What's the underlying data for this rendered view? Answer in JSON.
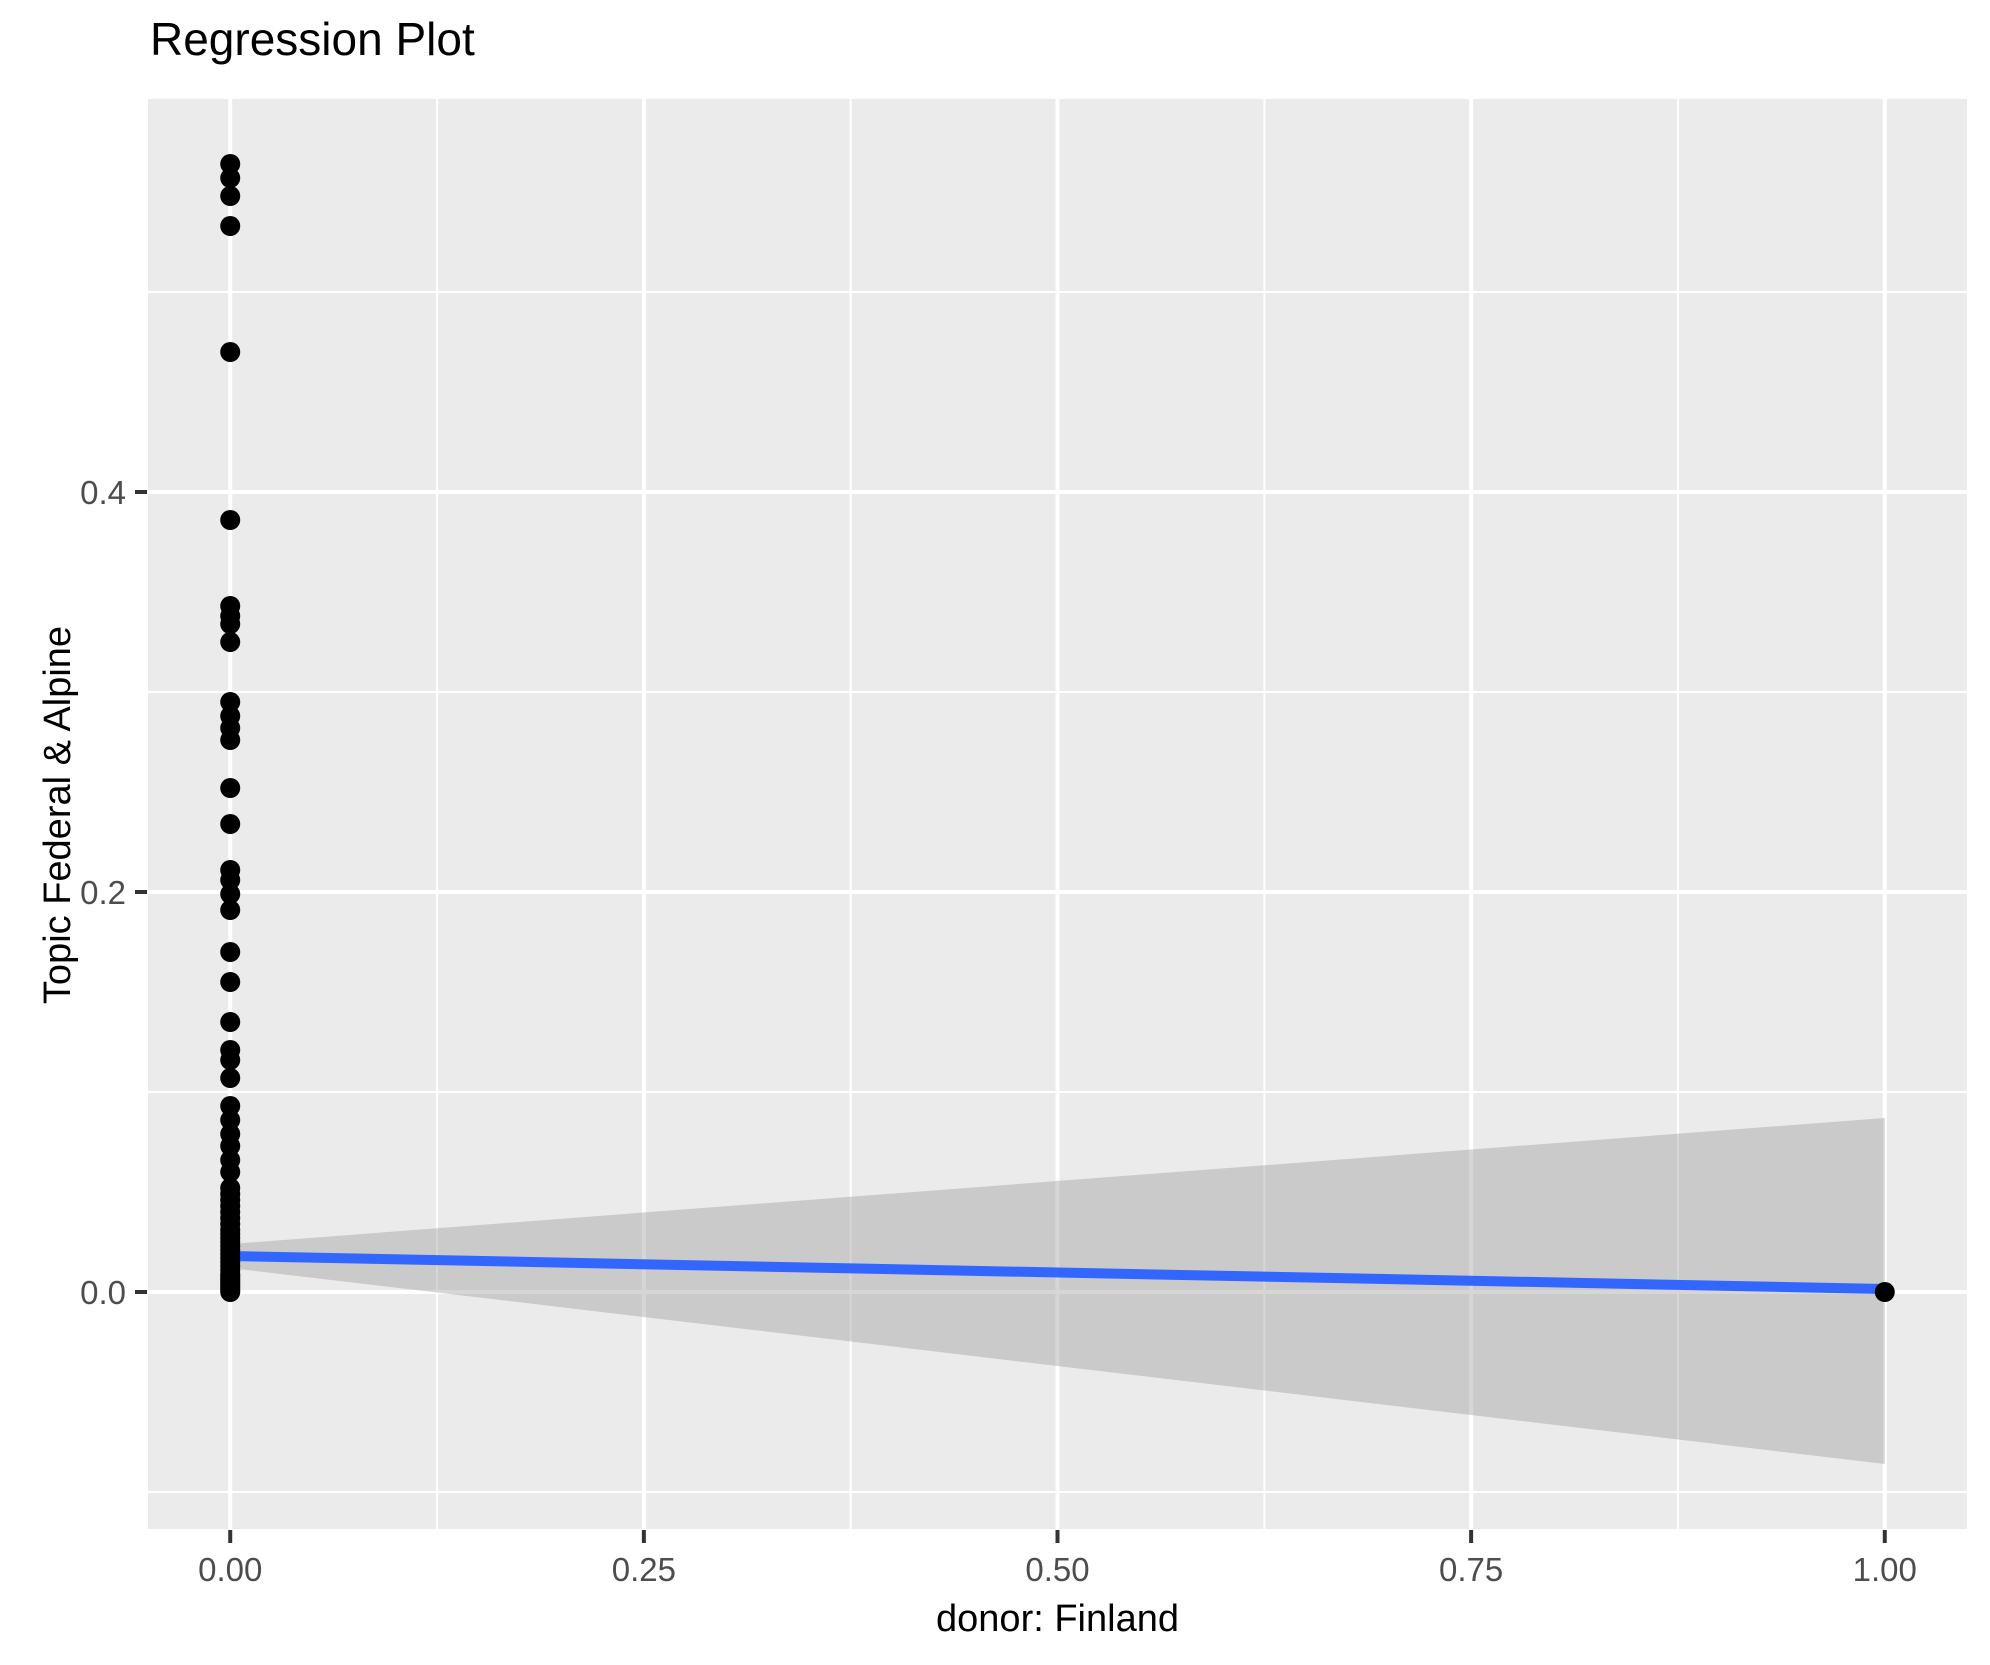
{
  "chart_data": {
    "type": "scatter",
    "title": "Regression Plot",
    "xlabel": "donor: Finland",
    "ylabel": "Topic Federal & Alpine",
    "xlim": [
      -0.0497,
      1.0497
    ],
    "ylim": [
      -0.1185,
      0.5965
    ],
    "x_major_ticks": [
      0.0,
      0.25,
      0.5,
      0.75,
      1.0
    ],
    "x_tick_labels": [
      "0.00",
      "0.25",
      "0.50",
      "0.75",
      "1.00"
    ],
    "x_minor_ticks": [
      0.125,
      0.375,
      0.625,
      0.875
    ],
    "y_major_ticks": [
      0.0,
      0.2,
      0.4
    ],
    "y_tick_labels": [
      "0.0",
      "0.2",
      "0.4"
    ],
    "y_minor_ticks": [
      -0.1,
      0.1,
      0.3,
      0.5
    ],
    "grid": true,
    "legend": false,
    "series": [
      {
        "name": "observations at donor=0",
        "x_constant": 0,
        "y_values": [
          0.564,
          0.557,
          0.548,
          0.533,
          0.47,
          0.386,
          0.343,
          0.338,
          0.334,
          0.325,
          0.295,
          0.288,
          0.282,
          0.276,
          0.252,
          0.234,
          0.211,
          0.206,
          0.199,
          0.191,
          0.17,
          0.155,
          0.135,
          0.121,
          0.116,
          0.107,
          0.093,
          0.086,
          0.079,
          0.073,
          0.066,
          0.06,
          0.052,
          0.049,
          0.046,
          0.043,
          0.04,
          0.037,
          0.034,
          0.031,
          0.029,
          0.027,
          0.025,
          0.023,
          0.021,
          0.019,
          0.017,
          0.015,
          0.013,
          0.011,
          0.009,
          0.008,
          0.007,
          0.006,
          0.005,
          0.004,
          0.003,
          0.002,
          0.001,
          0.0
        ]
      },
      {
        "name": "observation at donor=1",
        "x_constant": 1,
        "y_values": [
          0.0
        ]
      }
    ],
    "regression_line": {
      "x": [
        0,
        1
      ],
      "y": [
        0.018,
        0.0015
      ]
    },
    "confidence_band": {
      "x": [
        0,
        1
      ],
      "upper": [
        0.024,
        0.087
      ],
      "lower": [
        0.012,
        -0.086
      ]
    },
    "colors": {
      "panel_background": "#EBEBEB",
      "gridline": "#FFFFFF",
      "point": "#000000",
      "regression_line": "#3366FF",
      "confidence_band": "rgba(153,153,153,0.4)",
      "tick_label": "#4D4D4D",
      "tick_mark": "#333333",
      "title_text": "#000000"
    }
  }
}
